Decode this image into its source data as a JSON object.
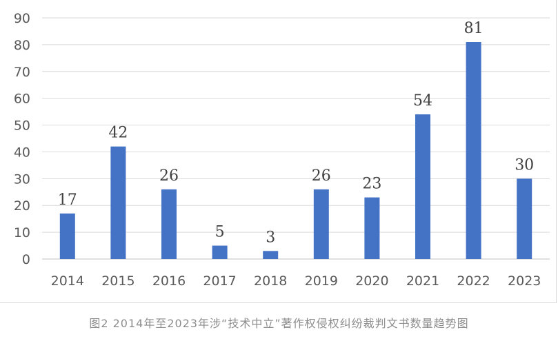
{
  "chart_data": {
    "type": "bar",
    "categories": [
      "2014",
      "2015",
      "2016",
      "2017",
      "2018",
      "2019",
      "2020",
      "2021",
      "2022",
      "2023"
    ],
    "values": [
      17,
      42,
      26,
      5,
      3,
      26,
      23,
      54,
      81,
      30
    ],
    "title": "",
    "xlabel": "",
    "ylabel": "",
    "ylim": [
      0,
      90
    ],
    "yticks": [
      0,
      10,
      20,
      30,
      40,
      50,
      60,
      70,
      80,
      90
    ],
    "grid": true,
    "data_labels": true,
    "bar_color": "#4472c4",
    "grid_color": "#d9d9d9"
  },
  "caption": "图2 2014年至2023年涉“技术中立”著作权侵权纠纷裁判文书数量趋势图"
}
